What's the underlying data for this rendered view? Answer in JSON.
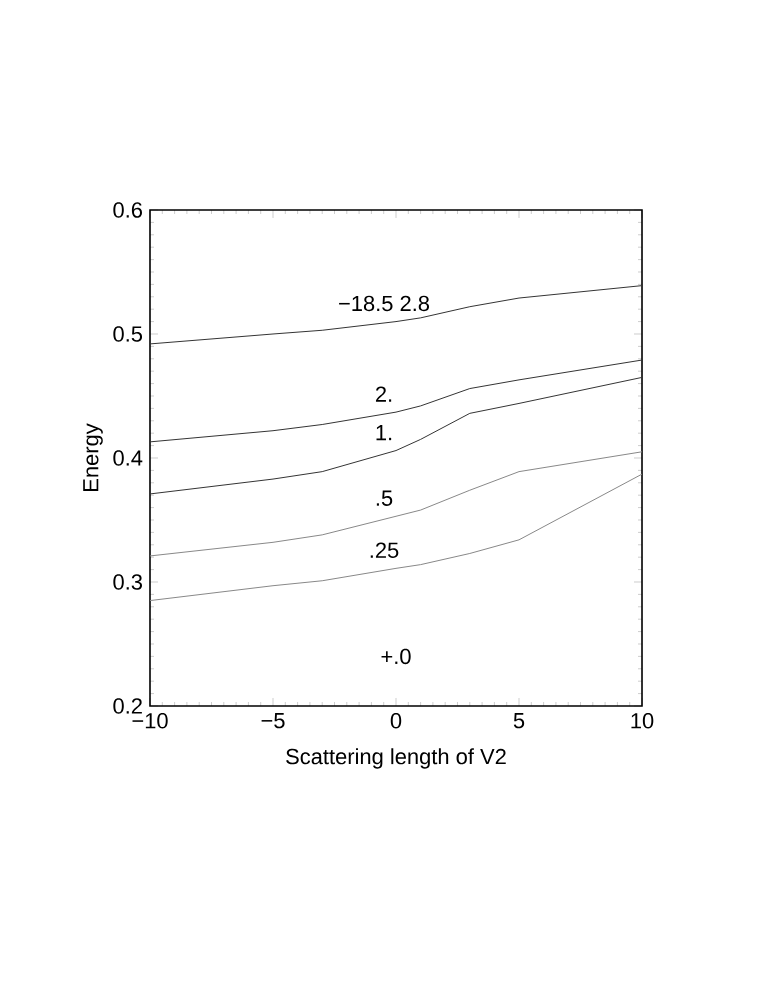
{
  "chart_data": {
    "type": "line",
    "xlabel": "Scattering length of V2",
    "ylabel": "Energy",
    "x": [
      -10,
      -5,
      -3,
      0,
      1,
      3,
      5,
      10
    ],
    "series": [
      {
        "name": "−18.5  2.8",
        "color": "#333333",
        "values": [
          0.492,
          0.5,
          0.503,
          0.51,
          0.513,
          0.522,
          0.529,
          0.539
        ]
      },
      {
        "name": "2.",
        "color": "#333333",
        "values": [
          0.413,
          0.422,
          0.427,
          0.437,
          0.442,
          0.456,
          0.463,
          0.479
        ]
      },
      {
        "name": "1.",
        "color": "#333333",
        "values": [
          0.371,
          0.383,
          0.389,
          0.406,
          0.415,
          0.436,
          0.444,
          0.465
        ]
      },
      {
        "name": ".5",
        "color": "#888888",
        "values": [
          0.321,
          0.332,
          0.338,
          0.353,
          0.358,
          0.374,
          0.389,
          0.405
        ]
      },
      {
        "name": ".25",
        "color": "#888888",
        "values": [
          0.285,
          0.297,
          0.301,
          0.311,
          0.314,
          0.323,
          0.334,
          0.387
        ]
      }
    ],
    "annotations": [
      "+.0"
    ],
    "xlim": [
      -10,
      10
    ],
    "ylim": [
      0.2,
      0.6
    ],
    "xticks": [
      {
        "value": -10,
        "label": "−10"
      },
      {
        "value": -5,
        "label": "−5"
      },
      0,
      5,
      10
    ],
    "yticks": [
      0.2,
      0.3,
      0.4,
      0.5,
      0.6
    ],
    "grid": false,
    "marker": "none",
    "line_style": "solid"
  }
}
